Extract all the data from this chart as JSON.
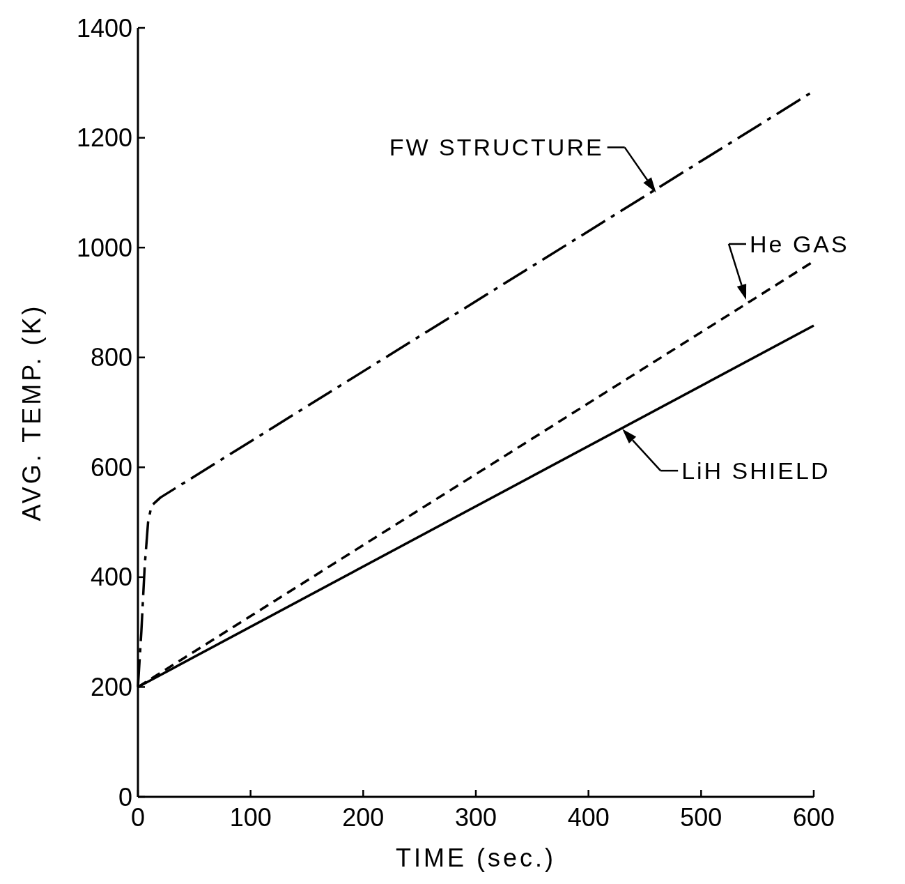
{
  "chart_data": {
    "type": "line",
    "xlabel": "TIME (sec.)",
    "ylabel": "AVG. TEMP. (K)",
    "xlim": [
      0,
      600
    ],
    "ylim": [
      0,
      1400
    ],
    "xticks": [
      0,
      100,
      200,
      300,
      400,
      500,
      600
    ],
    "yticks": [
      0,
      200,
      400,
      600,
      800,
      1000,
      1200,
      1400
    ],
    "series": [
      {
        "color": "#000000",
        "line_style": "dashdot",
        "x": [
          0,
          3,
          6,
          9,
          12,
          20,
          600
        ],
        "values": [
          200,
          300,
          420,
          500,
          530,
          545,
          1285
        ]
      },
      {
        "color": "#000000",
        "line_style": "dashed",
        "x": [
          0,
          600
        ],
        "values": [
          200,
          975
        ]
      },
      {
        "color": "#000000",
        "line_style": "solid",
        "x": [
          0,
          600
        ],
        "values": [
          200,
          858
        ]
      }
    ],
    "annotations": [
      {
        "text": "FW STRUCTURE",
        "x": 460,
        "y": 1100
      },
      {
        "text": "He GAS",
        "x": 540,
        "y": 905
      },
      {
        "text": "LiH SHIELD",
        "x": 430,
        "y": 670
      }
    ]
  }
}
